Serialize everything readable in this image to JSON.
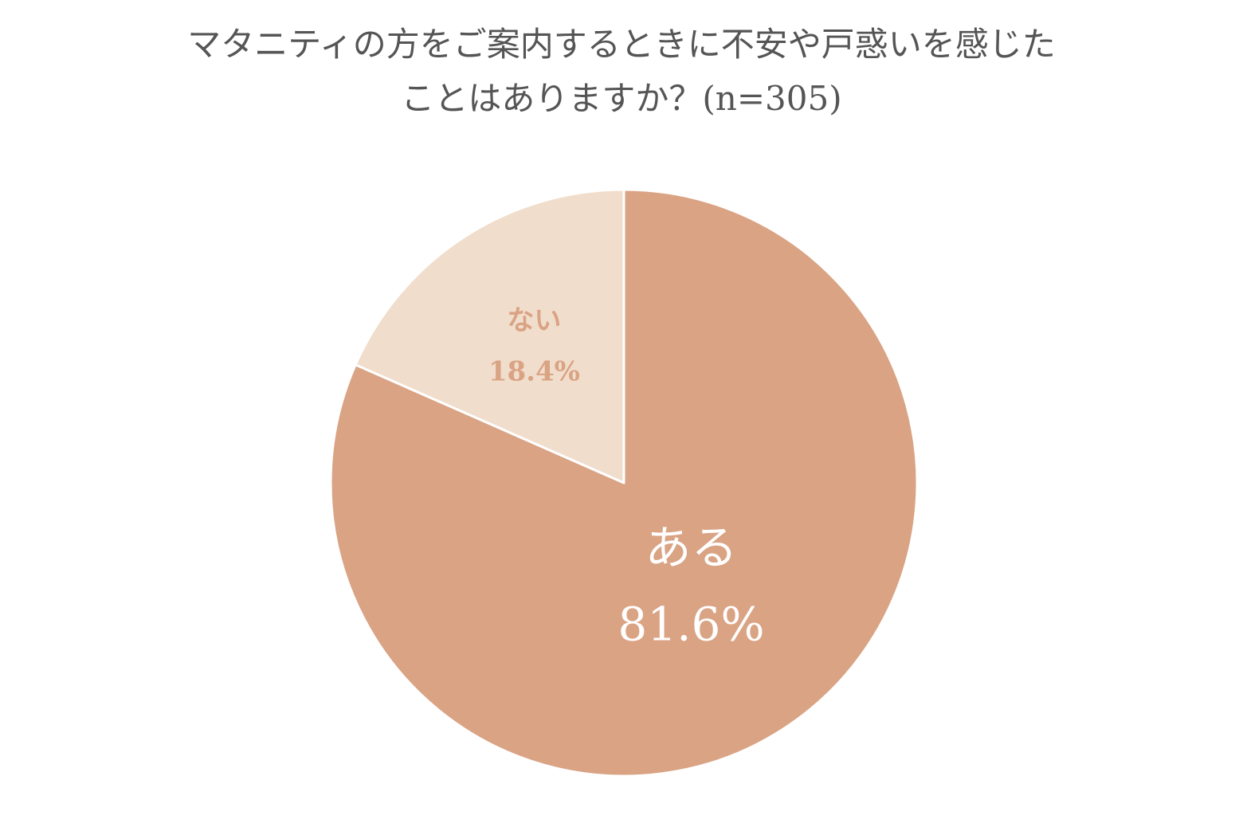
{
  "chart_data": {
    "type": "pie",
    "title_line1": "マタニティの方をご案内するときに不安や戸惑いを感じた",
    "title_line2": "ことはありますか？(n=305)",
    "slices": [
      {
        "label": "ある",
        "value": 81.6,
        "display": "81.6%",
        "color": "#d9a384",
        "text_color": "#ffffff"
      },
      {
        "label": "ない",
        "value": 18.4,
        "display": "18.4%",
        "color": "#f1ddcc",
        "text_color": "#d9a384"
      }
    ],
    "start": "12 o'clock",
    "direction": "clockwise",
    "legend": "none"
  }
}
